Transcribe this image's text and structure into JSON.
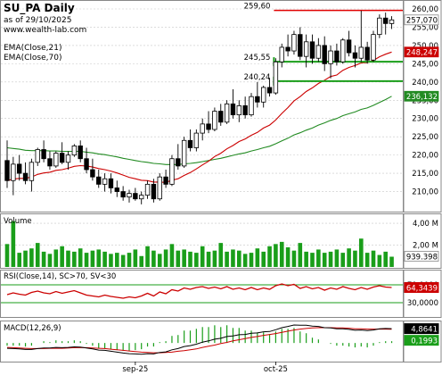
{
  "header": {
    "title": "SU_PA Daily",
    "date_line": "as of 29/10/2025",
    "site": "www.wealth-lab.com",
    "ema21_label": "EMA(Close,21)",
    "ema70_label": "EMA(Close,70)"
  },
  "colors": {
    "candle_up": "#ffffff",
    "candle_down": "#000000",
    "ema21": "#cc0000",
    "ema70": "#228b22",
    "volume": "#1a9e1a",
    "rsi": "#cc0000",
    "resistance": "#e00000",
    "support": "#1a9e1a",
    "macd": "#000000",
    "signal": "#cc0000",
    "histogram": "#1a9e1a",
    "grid": "#c8c8c8"
  },
  "chart_data": [
    {
      "type": "candlestick",
      "title": "SU_PA Daily",
      "ylim": [
        205,
        260
      ],
      "y_ticks": [
        "210,00",
        "215,00",
        "220,00",
        "225,00",
        "230,00",
        "235,00",
        "240,00",
        "245,00",
        "250,00",
        "255,00",
        "260,00"
      ],
      "x_tick_labels": [
        "sep-25",
        "oct-25"
      ],
      "candles": [
        [
          218.5,
          224.0,
          211.0,
          213.0
        ],
        [
          213.0,
          219.5,
          209.0,
          217.5
        ],
        [
          217.5,
          220.0,
          213.0,
          215.0
        ],
        [
          215.0,
          218.0,
          212.0,
          213.0
        ],
        [
          213.0,
          219.0,
          210.0,
          218.0
        ],
        [
          218.0,
          222.0,
          217.0,
          221.5
        ],
        [
          221.5,
          224.0,
          218.0,
          219.0
        ],
        [
          219.0,
          221.0,
          216.0,
          217.0
        ],
        [
          217.0,
          221.0,
          216.5,
          220.5
        ],
        [
          220.5,
          223.5,
          217.5,
          218.0
        ],
        [
          218.0,
          221.0,
          216.0,
          220.0
        ],
        [
          220.0,
          223.0,
          219.5,
          222.5
        ],
        [
          222.5,
          224.0,
          218.0,
          219.0
        ],
        [
          219.0,
          222.0,
          215.0,
          216.0
        ],
        [
          216.0,
          219.0,
          213.0,
          214.0
        ],
        [
          214.0,
          216.0,
          211.0,
          212.0
        ],
        [
          212.0,
          215.0,
          210.0,
          213.5
        ],
        [
          213.5,
          215.0,
          209.5,
          211.0
        ],
        [
          211.0,
          213.0,
          208.5,
          210.0
        ],
        [
          210.0,
          211.5,
          207.5,
          208.5
        ],
        [
          208.5,
          210.5,
          207.0,
          209.5
        ],
        [
          209.5,
          211.0,
          207.5,
          208.0
        ],
        [
          208.0,
          210.0,
          206.5,
          209.0
        ],
        [
          209.0,
          213.0,
          208.0,
          212.0
        ],
        [
          212.0,
          213.5,
          207.0,
          208.0
        ],
        [
          208.0,
          215.0,
          207.5,
          214.0
        ],
        [
          214.0,
          216.0,
          211.0,
          212.0
        ],
        [
          212.0,
          220.0,
          211.5,
          219.0
        ],
        [
          219.0,
          223.0,
          216.0,
          217.0
        ],
        [
          217.0,
          225.0,
          216.5,
          224.0
        ],
        [
          224.0,
          227.0,
          221.0,
          222.0
        ],
        [
          222.0,
          227.0,
          221.0,
          226.0
        ],
        [
          226.0,
          230.0,
          224.0,
          228.5
        ],
        [
          228.5,
          232.0,
          226.0,
          227.0
        ],
        [
          227.0,
          233.0,
          226.5,
          232.0
        ],
        [
          232.0,
          234.0,
          228.0,
          229.0
        ],
        [
          229.0,
          235.0,
          228.5,
          234.0
        ],
        [
          234.0,
          238.0,
          230.0,
          231.0
        ],
        [
          231.0,
          235.0,
          229.0,
          233.5
        ],
        [
          233.5,
          236.0,
          230.0,
          231.0
        ],
        [
          231.0,
          237.0,
          230.5,
          236.0
        ],
        [
          236.0,
          240.0,
          233.0,
          234.5
        ],
        [
          234.5,
          239.0,
          233.0,
          238.5
        ],
        [
          238.5,
          241.0,
          236.0,
          237.0
        ],
        [
          237.0,
          246.5,
          236.5,
          245.5
        ],
        [
          245.5,
          250.5,
          244.0,
          249.5
        ],
        [
          249.5,
          253.0,
          247.0,
          248.5
        ],
        [
          248.5,
          254.0,
          247.5,
          253.0
        ],
        [
          253.0,
          255.0,
          246.0,
          247.0
        ],
        [
          247.0,
          253.0,
          244.0,
          251.0
        ],
        [
          251.0,
          253.0,
          245.0,
          246.5
        ],
        [
          246.5,
          252.0,
          245.5,
          250.0
        ],
        [
          250.0,
          252.5,
          243.0,
          245.0
        ],
        [
          245.0,
          250.0,
          241.0,
          248.5
        ],
        [
          248.5,
          250.5,
          244.5,
          245.5
        ],
        [
          245.5,
          252.0,
          245.0,
          251.5
        ],
        [
          251.5,
          254.0,
          247.0,
          248.0
        ],
        [
          248.0,
          250.0,
          244.0,
          246.5
        ],
        [
          246.5,
          259.5,
          245.5,
          249.5
        ],
        [
          249.5,
          251.0,
          245.0,
          246.0
        ],
        [
          246.0,
          254.0,
          245.5,
          253.0
        ],
        [
          253.0,
          258.5,
          252.0,
          257.5
        ],
        [
          257.5,
          259.0,
          253.0,
          256.0
        ],
        [
          256.0,
          258.0,
          254.5,
          257.0
        ]
      ],
      "series": [
        {
          "name": "EMA(Close,21)",
          "values": [
            213.0,
            213.4,
            213.6,
            213.6,
            214.0,
            214.7,
            215.1,
            215.3,
            215.8,
            216.0,
            216.4,
            216.9,
            217.1,
            217.0,
            216.7,
            216.3,
            216.0,
            215.6,
            215.1,
            214.5,
            213.9,
            213.5,
            213.1,
            213.0,
            212.6,
            212.6,
            212.5,
            213.1,
            213.5,
            214.4,
            215.2,
            216.2,
            217.3,
            218.3,
            219.6,
            220.5,
            221.7,
            222.6,
            223.7,
            224.4,
            225.4,
            226.2,
            227.4,
            228.2,
            229.6,
            231.4,
            233.0,
            234.8,
            236.0,
            237.4,
            238.4,
            239.6,
            240.5,
            241.5,
            241.9,
            243.2,
            244.0,
            244.5,
            245.2,
            245.3,
            245.9,
            246.9,
            247.6,
            248.2
          ]
        },
        {
          "name": "EMA(Close,70)",
          "values": [
            222.0,
            221.8,
            221.6,
            221.3,
            221.2,
            221.2,
            221.2,
            221.1,
            221.1,
            221.0,
            221.0,
            221.0,
            221.0,
            220.8,
            220.6,
            220.3,
            220.1,
            219.8,
            219.5,
            219.1,
            218.8,
            218.5,
            218.2,
            218.0,
            217.7,
            217.6,
            217.4,
            217.4,
            217.4,
            217.6,
            217.7,
            217.9,
            218.2,
            218.5,
            218.8,
            219.1,
            219.5,
            219.9,
            220.3,
            220.6,
            221.1,
            221.5,
            222.0,
            222.4,
            223.1,
            223.9,
            224.6,
            225.5,
            226.1,
            226.8,
            227.4,
            228.2,
            228.8,
            229.5,
            230.0,
            230.8,
            231.3,
            231.8,
            232.5,
            232.9,
            233.6,
            234.4,
            235.2,
            236.1
          ]
        }
      ],
      "annotations": [
        {
          "label": "259,60",
          "value": 259.6
        },
        {
          "label": "245,55",
          "value": 245.55
        },
        {
          "label": "240,24",
          "value": 240.24
        }
      ],
      "last_values": {
        "close": "257,070",
        "ema21": "248,247",
        "ema70": "236,132"
      }
    },
    {
      "type": "bar",
      "title": "Volume",
      "y_ticks": [
        "2,00 M",
        "4,00 M"
      ],
      "ylim": [
        0,
        4500000
      ],
      "last_value_label": "939.398",
      "values": [
        2.1,
        4.2,
        1.3,
        1.5,
        1.7,
        2.2,
        1.4,
        1.2,
        1.6,
        1.9,
        1.5,
        1.4,
        1.7,
        1.3,
        1.5,
        1.6,
        1.4,
        1.2,
        1.3,
        1.1,
        1.3,
        1.6,
        1.0,
        1.9,
        1.5,
        1.2,
        1.6,
        2.1,
        1.5,
        1.6,
        1.4,
        1.3,
        1.9,
        1.4,
        1.5,
        2.2,
        1.4,
        1.6,
        1.5,
        1.2,
        1.3,
        1.7,
        1.4,
        1.9,
        2.1,
        2.3,
        1.8,
        1.5,
        2.2,
        1.4,
        1.3,
        1.6,
        1.3,
        1.4,
        1.6,
        1.3,
        1.7,
        1.5,
        2.6,
        1.3,
        1.5,
        1.1,
        1.4,
        0.94
      ]
    },
    {
      "type": "line",
      "title": "RSI(Close,14), SC>70, SV<30",
      "y_ticks": [
        "30,0000",
        "70,0000"
      ],
      "ylim": [
        0,
        100
      ],
      "last_value_label": "64,3439",
      "series": [
        {
          "name": "RSI(Close,14)",
          "values": [
            48,
            52,
            49,
            47,
            53,
            56,
            52,
            50,
            55,
            51,
            54,
            57,
            52,
            47,
            45,
            43,
            47,
            44,
            42,
            40,
            43,
            41,
            45,
            51,
            45,
            54,
            50,
            59,
            56,
            63,
            60,
            64,
            66,
            62,
            65,
            61,
            66,
            60,
            63,
            59,
            64,
            59,
            63,
            60,
            68,
            72,
            68,
            71,
            62,
            66,
            61,
            64,
            58,
            63,
            60,
            66,
            62,
            59,
            64,
            60,
            65,
            68,
            65,
            64
          ]
        }
      ]
    },
    {
      "type": "line",
      "title": "MACD(12,26,9)",
      "last_value_labels": [
        "4,8641",
        "0,1993"
      ],
      "ylim": [
        -6,
        7
      ],
      "series": [
        {
          "name": "MACD",
          "values": [
            -1.8,
            -1.9,
            -2.0,
            -2.2,
            -2.2,
            -1.9,
            -1.7,
            -1.7,
            -1.5,
            -1.6,
            -1.5,
            -1.3,
            -1.4,
            -1.7,
            -2.0,
            -2.4,
            -2.5,
            -2.8,
            -3.1,
            -3.4,
            -3.6,
            -3.7,
            -3.8,
            -3.6,
            -3.7,
            -3.2,
            -3.0,
            -2.3,
            -1.9,
            -1.2,
            -0.9,
            -0.4,
            0.3,
            0.7,
            1.3,
            1.6,
            2.2,
            2.4,
            2.8,
            2.9,
            3.3,
            3.4,
            3.8,
            3.9,
            4.5,
            5.2,
            5.6,
            6.1,
            6.0,
            6.0,
            5.7,
            5.6,
            5.2,
            5.1,
            4.8,
            4.8,
            4.6,
            4.3,
            4.4,
            4.2,
            4.4,
            4.8,
            4.9,
            4.86
          ]
        },
        {
          "name": "Signal",
          "values": [
            -1.5,
            -1.6,
            -1.7,
            -1.8,
            -1.9,
            -1.9,
            -1.9,
            -1.8,
            -1.8,
            -1.8,
            -1.7,
            -1.6,
            -1.6,
            -1.6,
            -1.7,
            -1.8,
            -1.9,
            -2.1,
            -2.3,
            -2.5,
            -2.7,
            -2.9,
            -3.1,
            -3.2,
            -3.3,
            -3.3,
            -3.2,
            -3.1,
            -2.8,
            -2.6,
            -2.3,
            -2.0,
            -1.5,
            -1.1,
            -0.7,
            -0.2,
            0.2,
            0.7,
            1.1,
            1.5,
            1.9,
            2.2,
            2.6,
            2.9,
            3.2,
            3.6,
            4.0,
            4.4,
            4.7,
            4.9,
            5.1,
            5.2,
            5.2,
            5.2,
            5.1,
            5.1,
            5.0,
            4.8,
            4.8,
            4.7,
            4.7,
            4.7,
            4.7,
            4.66
          ]
        }
      ]
    }
  ]
}
